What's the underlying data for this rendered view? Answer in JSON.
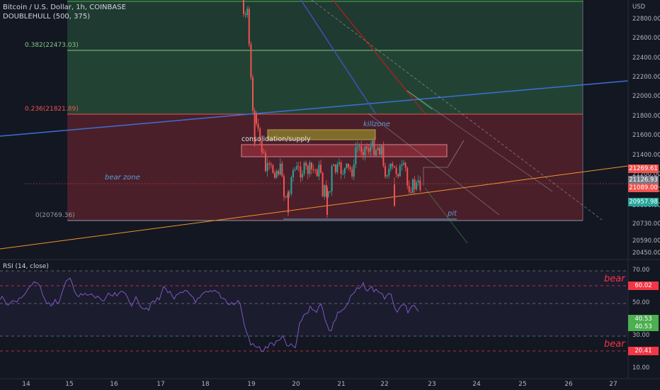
{
  "header": {
    "title": "Bitcoin / U.S. Dollar, 1h, COINBASE",
    "indicator": "DOUBLEHULL (500, 375)"
  },
  "price_axis": {
    "currency": "USD",
    "labels": [
      "22800.00",
      "22600.00",
      "22400.00",
      "22200.00",
      "22000.00",
      "21800.00",
      "21600.00",
      "21400.00",
      "21200.00",
      "21030.00",
      "20890.00",
      "20730.00",
      "20590.00",
      "20450.00"
    ],
    "tags": [
      {
        "text": "21269.61",
        "color": "#ef5350"
      },
      {
        "text": "21126.93",
        "color": "#787b86"
      },
      {
        "text": "21089.00",
        "color": "#ef5350"
      },
      {
        "text": "20957.98",
        "color": "#26a69a"
      }
    ]
  },
  "fib_levels": [
    {
      "text": "0.382(22473.03)",
      "color": "#81c784"
    },
    {
      "text": "0.236(21821.89)",
      "color": "#ef5350"
    },
    {
      "text": "0(20769.36)",
      "color": "#9598a1"
    }
  ],
  "annotations": {
    "killzone": "killzone",
    "consolidation": "consolidation/supply",
    "bear_zone": "bear zone",
    "pit": "pit"
  },
  "rsi": {
    "label": "RSI (14, close)",
    "axis_labels": [
      "70.00",
      "50.00",
      "30.00",
      "10.00"
    ],
    "tags": [
      {
        "text": "60.02",
        "color": "#f23645"
      },
      {
        "text": "40.53",
        "color": "#4caf50"
      },
      {
        "text": "40.53",
        "color": "#4caf50"
      },
      {
        "text": "20.41",
        "color": "#f23645"
      }
    ],
    "bear_upper": "bear",
    "bear_lower": "bear"
  },
  "time_axis": {
    "labels": [
      "14",
      "15",
      "16",
      "17",
      "18",
      "19",
      "20",
      "21",
      "22",
      "23",
      "24",
      "25",
      "26",
      "27"
    ]
  },
  "colors": {
    "background": "#131722",
    "up": "#26a69a",
    "down": "#ef5350",
    "green_zone": "#1e3b2f",
    "red_zone": "#4a1f2a",
    "rsi_line": "#7e57c2"
  }
}
